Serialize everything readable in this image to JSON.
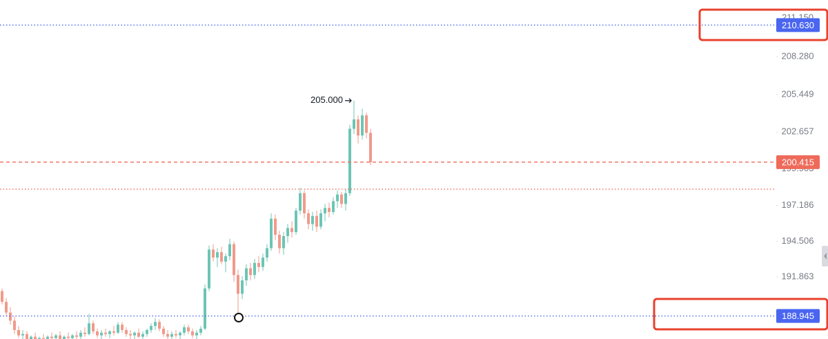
{
  "chart_data": {
    "type": "candlestick",
    "ohlc": [
      [
        190.8,
        191.0,
        189.8,
        190.0
      ],
      [
        190.0,
        190.3,
        188.9,
        189.2
      ],
      [
        189.2,
        189.6,
        188.3,
        188.6
      ],
      [
        188.6,
        188.9,
        187.6,
        187.9
      ],
      [
        187.9,
        188.2,
        187.3,
        187.5
      ],
      [
        187.5,
        187.9,
        187.1,
        187.6
      ],
      [
        187.6,
        187.8,
        187.0,
        187.2
      ],
      [
        187.2,
        187.5,
        186.9,
        187.4
      ],
      [
        187.4,
        187.7,
        187.0,
        187.1
      ],
      [
        187.1,
        187.4,
        186.8,
        187.3
      ],
      [
        187.3,
        187.6,
        187.0,
        187.2
      ],
      [
        187.2,
        187.5,
        186.9,
        187.4
      ],
      [
        187.4,
        187.7,
        187.1,
        187.3
      ],
      [
        187.3,
        187.6,
        187.0,
        187.5
      ],
      [
        187.5,
        187.8,
        187.1,
        187.2
      ],
      [
        187.2,
        187.5,
        186.9,
        187.4
      ],
      [
        187.4,
        187.7,
        187.1,
        187.3
      ],
      [
        187.3,
        187.6,
        187.0,
        187.5
      ],
      [
        187.5,
        187.8,
        187.2,
        187.4
      ],
      [
        187.4,
        187.9,
        187.2,
        187.7
      ],
      [
        187.7,
        188.1,
        187.4,
        187.6
      ],
      [
        187.6,
        189.1,
        187.5,
        188.4
      ],
      [
        188.4,
        188.6,
        187.6,
        187.8
      ],
      [
        187.8,
        188.0,
        187.3,
        187.5
      ],
      [
        187.5,
        187.9,
        187.2,
        187.7
      ],
      [
        187.7,
        188.0,
        187.4,
        187.6
      ],
      [
        187.6,
        187.9,
        187.3,
        187.8
      ],
      [
        187.8,
        188.2,
        187.5,
        187.7
      ],
      [
        187.7,
        188.5,
        187.6,
        188.3
      ],
      [
        188.3,
        188.5,
        187.7,
        187.9
      ],
      [
        187.9,
        188.1,
        187.4,
        187.6
      ],
      [
        187.6,
        187.9,
        187.2,
        187.5
      ],
      [
        187.5,
        187.8,
        187.1,
        187.7
      ],
      [
        187.7,
        188.0,
        187.3,
        187.4
      ],
      [
        187.4,
        187.8,
        187.1,
        187.6
      ],
      [
        187.6,
        188.0,
        187.4,
        187.9
      ],
      [
        187.9,
        188.4,
        187.7,
        188.2
      ],
      [
        188.2,
        188.8,
        187.9,
        188.5
      ],
      [
        188.5,
        188.7,
        187.8,
        188.0
      ],
      [
        188.0,
        188.2,
        187.4,
        187.6
      ],
      [
        187.6,
        187.9,
        187.2,
        187.4
      ],
      [
        187.4,
        187.8,
        187.1,
        187.6
      ],
      [
        187.6,
        187.9,
        187.3,
        187.5
      ],
      [
        187.5,
        187.8,
        187.1,
        187.7
      ],
      [
        187.7,
        188.3,
        187.5,
        188.1
      ],
      [
        188.1,
        188.3,
        187.6,
        187.8
      ],
      [
        187.8,
        188.0,
        187.3,
        187.5
      ],
      [
        187.5,
        187.9,
        187.2,
        187.7
      ],
      [
        187.7,
        188.2,
        187.5,
        188.0
      ],
      [
        188.0,
        191.3,
        187.9,
        191.0
      ],
      [
        191.0,
        194.2,
        190.8,
        193.9
      ],
      [
        193.9,
        194.3,
        193.0,
        193.3
      ],
      [
        193.3,
        194.0,
        192.6,
        193.7
      ],
      [
        193.7,
        194.1,
        192.8,
        193.0
      ],
      [
        193.0,
        193.6,
        192.2,
        193.4
      ],
      [
        193.4,
        194.7,
        193.1,
        194.3
      ],
      [
        194.3,
        194.5,
        191.5,
        192.0
      ],
      [
        192.0,
        192.4,
        189.1,
        190.6
      ],
      [
        190.6,
        191.9,
        190.2,
        191.6
      ],
      [
        191.6,
        192.8,
        191.2,
        192.5
      ],
      [
        192.5,
        192.9,
        191.6,
        192.0
      ],
      [
        192.0,
        193.2,
        191.7,
        192.9
      ],
      [
        192.9,
        193.4,
        192.2,
        192.6
      ],
      [
        192.6,
        193.6,
        192.3,
        193.3
      ],
      [
        193.3,
        194.3,
        193.0,
        194.0
      ],
      [
        194.0,
        196.6,
        193.8,
        196.2
      ],
      [
        196.2,
        196.5,
        194.6,
        195.0
      ],
      [
        195.0,
        195.3,
        193.6,
        194.0
      ],
      [
        194.0,
        195.2,
        193.5,
        194.9
      ],
      [
        194.9,
        195.8,
        194.4,
        195.5
      ],
      [
        195.5,
        196.0,
        194.8,
        195.2
      ],
      [
        195.2,
        197.0,
        195.0,
        196.8
      ],
      [
        196.8,
        198.5,
        196.5,
        198.1
      ],
      [
        198.1,
        198.3,
        196.2,
        196.6
      ],
      [
        196.6,
        196.9,
        195.4,
        195.8
      ],
      [
        195.8,
        196.7,
        195.3,
        196.4
      ],
      [
        196.4,
        196.8,
        195.2,
        195.6
      ],
      [
        195.6,
        196.9,
        195.4,
        196.6
      ],
      [
        196.6,
        197.3,
        196.0,
        197.0
      ],
      [
        197.0,
        197.4,
        196.3,
        196.7
      ],
      [
        196.7,
        197.8,
        196.5,
        197.5
      ],
      [
        197.5,
        198.3,
        197.0,
        198.0
      ],
      [
        198.0,
        198.2,
        197.0,
        197.3
      ],
      [
        197.3,
        198.4,
        196.8,
        198.1
      ],
      [
        198.1,
        203.2,
        197.9,
        202.9
      ],
      [
        202.9,
        205.0,
        202.5,
        203.6
      ],
      [
        203.6,
        203.9,
        201.8,
        202.4
      ],
      [
        202.4,
        204.4,
        202.1,
        203.9
      ],
      [
        203.9,
        204.1,
        202.2,
        202.6
      ],
      [
        202.6,
        202.9,
        200.2,
        200.415
      ]
    ],
    "up_color": "#6cc5b5",
    "down_color": "#f09a8a",
    "ylim": [
      187.23,
      212.5
    ],
    "yticks": [
      {
        "value": 211.15,
        "label": "211.150"
      },
      {
        "value": 208.28,
        "label": "208.280"
      },
      205.449,
      202.657,
      199.903,
      197.186,
      194.506,
      191.863
    ],
    "price_lines": [
      {
        "value": 210.63,
        "label": "210.630",
        "color": "#4a66f0",
        "style": "dotted"
      },
      {
        "value": 200.415,
        "label": "200.415",
        "color": "#ef6a5a",
        "style": "dashed"
      },
      {
        "value": 198.4,
        "color": "#ef5350",
        "style": "dotted"
      },
      {
        "value": 188.945,
        "label": "188.945",
        "color": "#4a66f0",
        "style": "dotted"
      }
    ],
    "high_annotation": {
      "value": 205.0,
      "label": "205.000"
    }
  }
}
